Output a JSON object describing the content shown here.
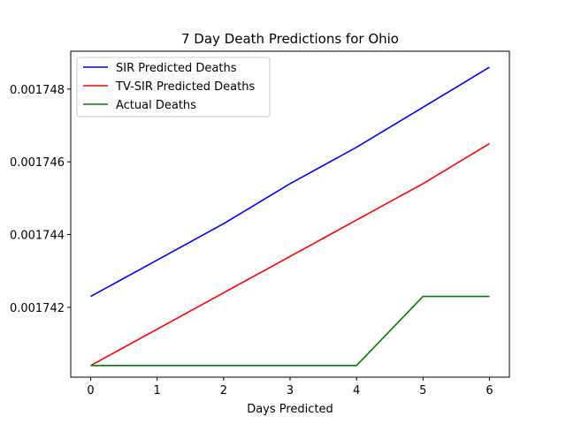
{
  "chart_data": {
    "type": "line",
    "title": "7 Day Death Predictions for Ohio",
    "xlabel": "Days Predicted",
    "ylabel": "",
    "x": [
      0,
      1,
      2,
      3,
      4,
      5,
      6
    ],
    "xticks": [
      "0",
      "1",
      "2",
      "3",
      "4",
      "5",
      "6"
    ],
    "yticks": [
      0.001742,
      0.001744,
      0.001746,
      0.001748
    ],
    "ytick_labels": [
      "0.001742",
      "0.001744",
      "0.001746",
      "0.001748"
    ],
    "xlim": [
      -0.3,
      6.3
    ],
    "ylim": [
      0.00174008,
      0.00174904
    ],
    "grid": false,
    "legend_position": "top-left",
    "series": [
      {
        "name": "SIR Predicted Deaths",
        "color": "#0000ff",
        "values": [
          0.0017423,
          0.0017433,
          0.0017443,
          0.0017454,
          0.0017464,
          0.0017475,
          0.0017486
        ]
      },
      {
        "name": "TV-SIR Predicted Deaths",
        "color": "#ff0000",
        "values": [
          0.0017404,
          0.0017414,
          0.0017424,
          0.0017434,
          0.0017444,
          0.0017454,
          0.0017465
        ]
      },
      {
        "name": "Actual Deaths",
        "color": "#008000",
        "values": [
          0.0017404,
          0.0017404,
          0.0017404,
          0.0017404,
          0.0017404,
          0.0017423,
          0.0017423
        ]
      }
    ]
  }
}
